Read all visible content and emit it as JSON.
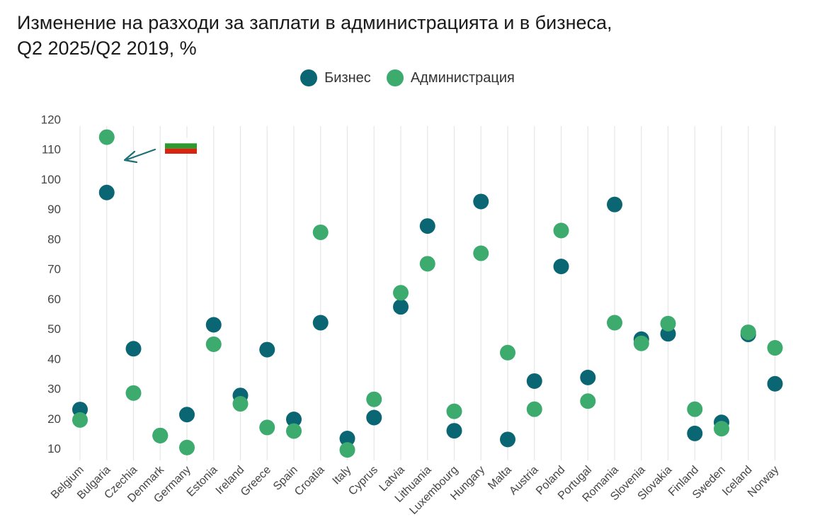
{
  "title": {
    "line1": "Изменение на разходи за заплати в администрацията и в бизнеса,",
    "line2": "Q2 2025/Q2 2019, %"
  },
  "colors": {
    "business": "#0b6673",
    "administration": "#3daa6e",
    "grid": "#e6e6e6",
    "arrow": "#1f6f78",
    "flag_white": "#ffffff",
    "flag_green": "#2e9a2e",
    "flag_red": "#d62612"
  },
  "annotation": {
    "icon": "bulgarian-flag-icon",
    "points_to": "Bulgaria"
  },
  "chart_data": {
    "type": "scatter",
    "title": "Изменение на разходи за заплати в администрацията и в бизнеса, Q2 2025/Q2 2019, %",
    "categories": [
      "Belgium",
      "Bulgaria",
      "Czechia",
      "Denmark",
      "Germany",
      "Estonia",
      "Ireland",
      "Greece",
      "Spain",
      "Croatia",
      "Italy",
      "Cyprus",
      "Latvia",
      "Lithuania",
      "Luxembourg",
      "Hungary",
      "Malta",
      "Austria",
      "Poland",
      "Portugal",
      "Romania",
      "Slovenia",
      "Slovakia",
      "Finland",
      "Sweden",
      "Iceland",
      "Norway"
    ],
    "series": [
      {
        "name": "Бизнес",
        "values": [
          23,
          95.5,
          43.3,
          14.3,
          21.3,
          51.3,
          27.7,
          43,
          19.7,
          52,
          13.3,
          20.3,
          57.3,
          84.3,
          15.9,
          92.5,
          13,
          32.5,
          70.8,
          33.7,
          91.5,
          46.5,
          48.3,
          15,
          18.7,
          48.1,
          31.6
        ]
      },
      {
        "name": "Администрация",
        "values": [
          19.5,
          114,
          28.5,
          14.3,
          10.3,
          44.8,
          24.9,
          17,
          15.8,
          82.2,
          9.5,
          26.4,
          62,
          71.7,
          22.4,
          75.2,
          42,
          23.1,
          82.8,
          25.8,
          52,
          45.1,
          51.7,
          23.1,
          16.6,
          48.8,
          43.6
        ]
      }
    ],
    "yticks": [
      10,
      20,
      30,
      40,
      50,
      60,
      70,
      80,
      90,
      100,
      110,
      120
    ],
    "ylim": [
      6,
      120
    ],
    "grid": "vertical",
    "legend": "top-center"
  }
}
